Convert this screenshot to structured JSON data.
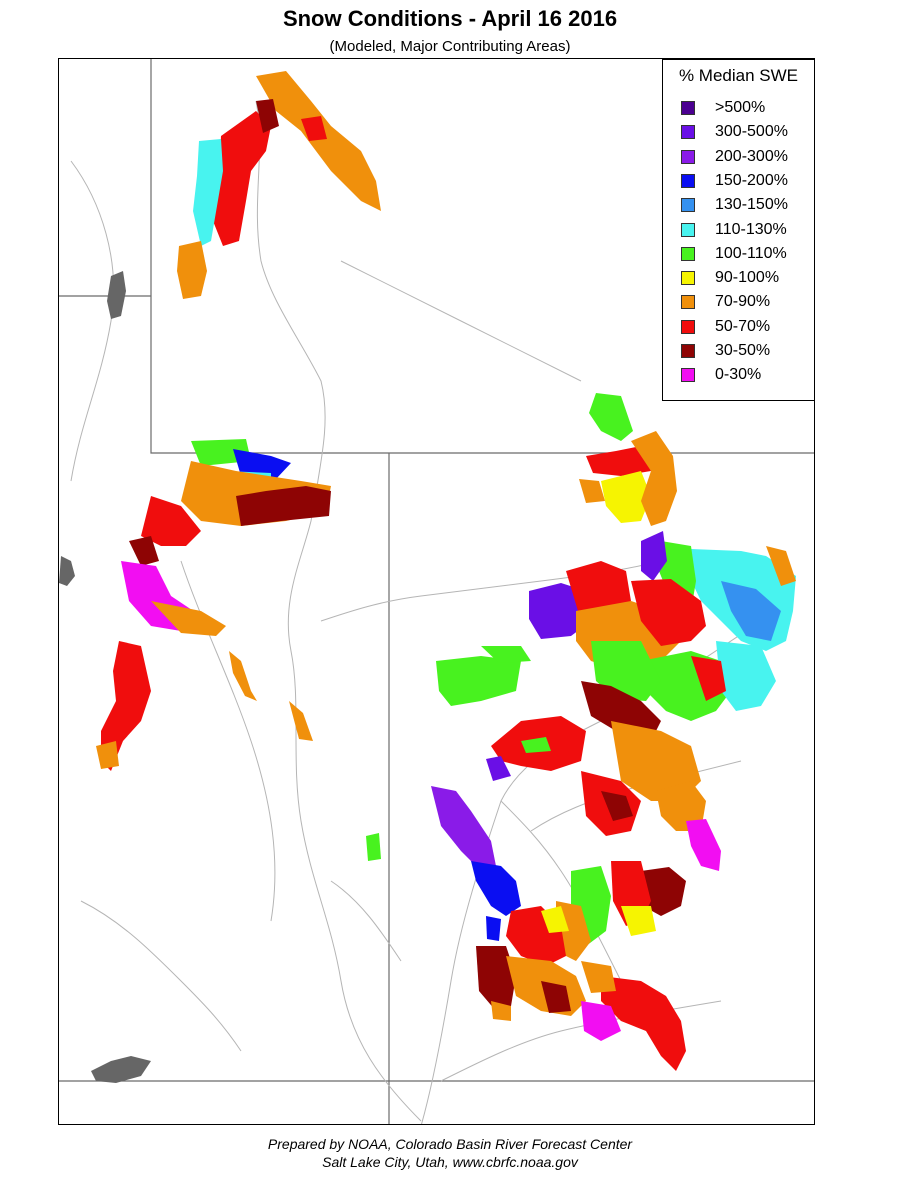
{
  "header": {
    "title": "Snow Conditions - April 16 2016",
    "subtitle": "(Modeled, Major Contributing Areas)"
  },
  "legend": {
    "title": "% Median SWE",
    "items": [
      {
        "label": ">500%",
        "color": "#4b0091"
      },
      {
        "label": "300-500%",
        "color": "#6a0fe6"
      },
      {
        "label": "200-300%",
        "color": "#8a1be8"
      },
      {
        "label": "150-200%",
        "color": "#0a0ef2"
      },
      {
        "label": "130-150%",
        "color": "#3591f0"
      },
      {
        "label": "110-130%",
        "color": "#48f3ef"
      },
      {
        "label": "100-110%",
        "color": "#48f21f"
      },
      {
        "label": "90-100%",
        "color": "#f6f401"
      },
      {
        "label": "70-90%",
        "color": "#f0900c"
      },
      {
        "label": "50-70%",
        "color": "#f00d0d"
      },
      {
        "label": "30-50%",
        "color": "#8e0404"
      },
      {
        "label": "0-30%",
        "color": "#f20ef2"
      }
    ]
  },
  "footer": {
    "line1": "Prepared by NOAA, Colorado Basin River Forecast Center",
    "line2": "Salt Lake City, Utah, www.cbrfc.noaa.gov"
  },
  "map": {
    "border_color": "#6b6b6b",
    "river_color": "#b5b5b5",
    "lake_color": "#666666"
  }
}
